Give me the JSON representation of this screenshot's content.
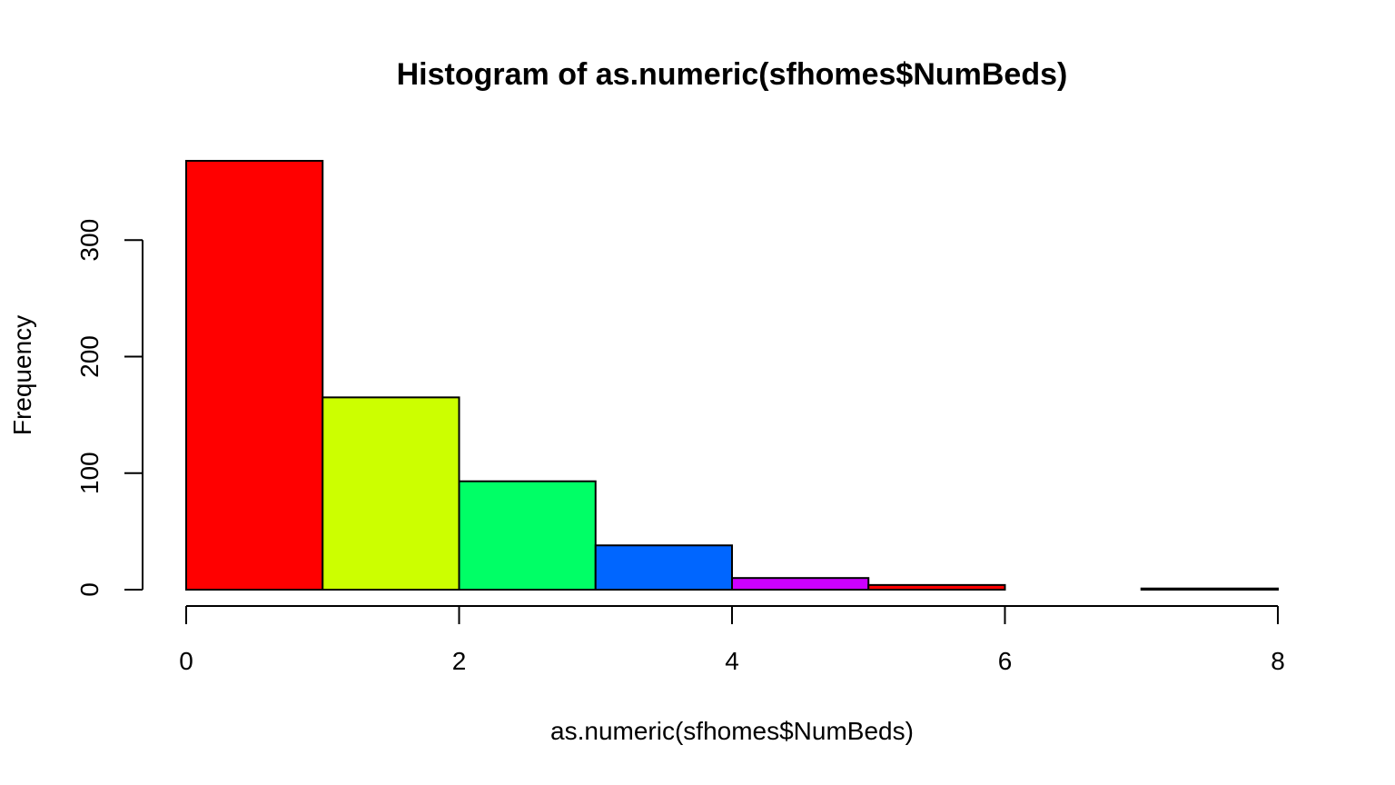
{
  "chart_data": {
    "type": "bar",
    "title": "Histogram of as.numeric(sfhomes$NumBeds)",
    "xlabel": "as.numeric(sfhomes$NumBeds)",
    "ylabel": "Frequency",
    "bins": [
      {
        "x0": 0,
        "x1": 1,
        "count": 368,
        "color": "#FF0000"
      },
      {
        "x0": 1,
        "x1": 2,
        "count": 165,
        "color": "#CCFF00"
      },
      {
        "x0": 2,
        "x1": 3,
        "count": 93,
        "color": "#00FF66"
      },
      {
        "x0": 3,
        "x1": 4,
        "count": 38,
        "color": "#0066FF"
      },
      {
        "x0": 4,
        "x1": 5,
        "count": 10,
        "color": "#CC00FF"
      },
      {
        "x0": 5,
        "x1": 6,
        "count": 4,
        "color": "#FF0000"
      },
      {
        "x0": 6,
        "x1": 7,
        "count": 0,
        "color": "#CCFF00"
      },
      {
        "x0": 7,
        "x1": 8,
        "count": 1,
        "color": "#00FF66"
      }
    ],
    "xlim": [
      0,
      8
    ],
    "ylim": [
      0,
      368
    ],
    "x_ticks": [
      0,
      2,
      4,
      6,
      8
    ],
    "x_tick_labels": [
      "0",
      "2",
      "4",
      "6",
      "8"
    ],
    "y_ticks": [
      0,
      100,
      200,
      300
    ],
    "y_tick_labels": [
      "0",
      "100",
      "200",
      "300"
    ],
    "grid": false,
    "legend": "none"
  }
}
